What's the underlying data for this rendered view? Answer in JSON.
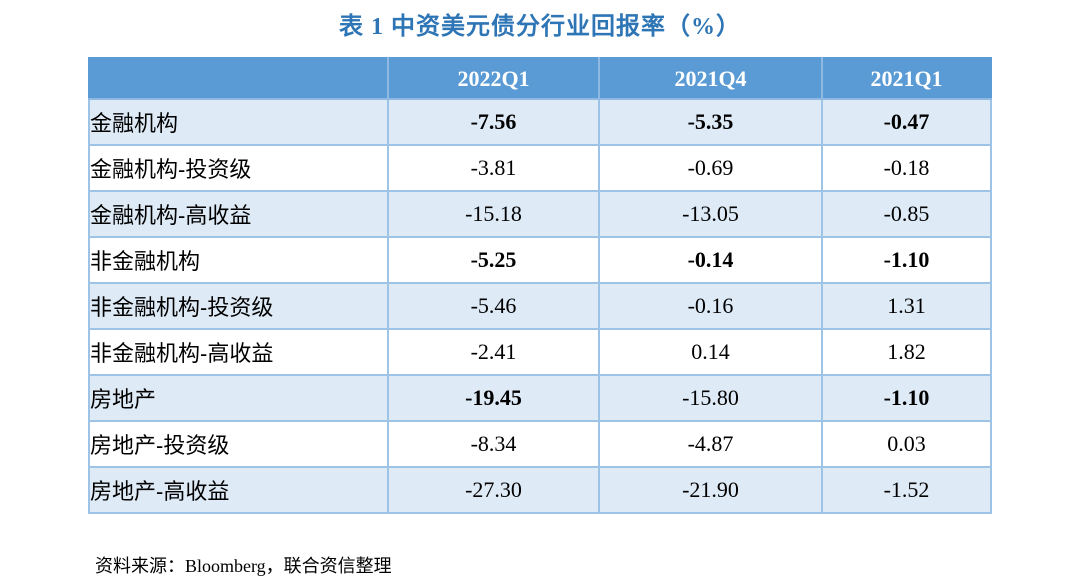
{
  "title": "表 1 中资美元债分行业回报率（%）",
  "table": {
    "columns": [
      "",
      "2022Q1",
      "2021Q4",
      "2021Q1"
    ],
    "rows": [
      {
        "label": "金融机构",
        "values": [
          "-7.56",
          "-5.35",
          "-0.47"
        ],
        "bold": [
          true,
          true,
          true
        ],
        "shaded": true
      },
      {
        "label": "金融机构-投资级",
        "values": [
          "-3.81",
          "-0.69",
          "-0.18"
        ],
        "bold": [
          false,
          false,
          false
        ],
        "shaded": false
      },
      {
        "label": "金融机构-高收益",
        "values": [
          "-15.18",
          "-13.05",
          "-0.85"
        ],
        "bold": [
          false,
          false,
          false
        ],
        "shaded": true
      },
      {
        "label": "非金融机构",
        "values": [
          "-5.25",
          "-0.14",
          "-1.10"
        ],
        "bold": [
          true,
          true,
          true
        ],
        "shaded": false
      },
      {
        "label": "非金融机构-投资级",
        "values": [
          "-5.46",
          "-0.16",
          "1.31"
        ],
        "bold": [
          false,
          false,
          false
        ],
        "shaded": true
      },
      {
        "label": "非金融机构-高收益",
        "values": [
          "-2.41",
          "0.14",
          "1.82"
        ],
        "bold": [
          false,
          false,
          false
        ],
        "shaded": false
      },
      {
        "label": "房地产",
        "values": [
          "-19.45",
          "-15.80",
          "-1.10"
        ],
        "bold": [
          true,
          false,
          true
        ],
        "shaded": true
      },
      {
        "label": "房地产-投资级",
        "values": [
          "-8.34",
          "-4.87",
          "0.03"
        ],
        "bold": [
          false,
          false,
          false
        ],
        "shaded": false
      },
      {
        "label": "房地产-高收益",
        "values": [
          "-27.30",
          "-21.90",
          "-1.52"
        ],
        "bold": [
          false,
          false,
          false
        ],
        "shaded": true
      }
    ]
  },
  "source": "资料来源：Bloomberg，联合资信整理",
  "colors": {
    "title": "#2E75B6",
    "header_bg": "#5B9BD5",
    "header_text": "#FFFFFF",
    "shaded_row_bg": "#DEEAF6",
    "border": "#9DC3E6"
  }
}
